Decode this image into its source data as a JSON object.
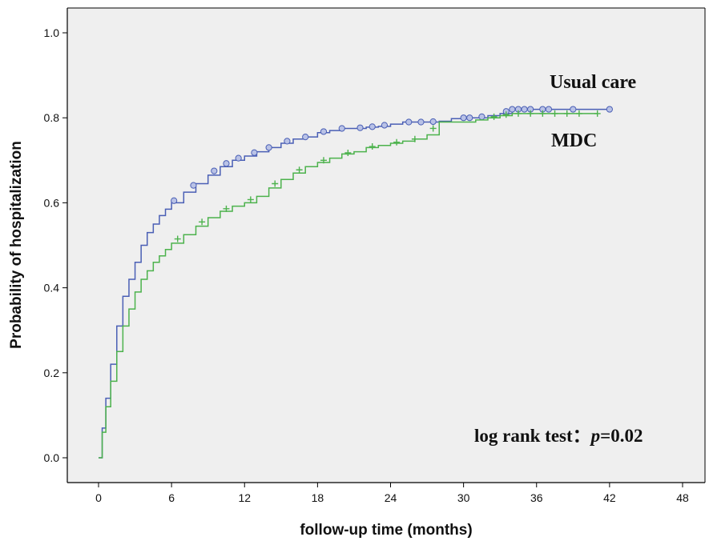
{
  "chart_data": {
    "type": "line",
    "subtype": "kaplan-meier-cumulative-incidence",
    "title": "",
    "xlabel": "follow-up time (months)",
    "ylabel": "Probability of hospitalization",
    "xlim": [
      0,
      48
    ],
    "ylim": [
      0,
      1.0
    ],
    "x_ticks": [
      0,
      6,
      12,
      18,
      24,
      30,
      36,
      42,
      48
    ],
    "x_tick_labels": [
      "0",
      "6",
      "12",
      "18",
      "24",
      "30",
      "36",
      "42",
      "48"
    ],
    "y_ticks": [
      0.0,
      0.2,
      0.4,
      0.6,
      0.8,
      1.0
    ],
    "y_tick_labels": [
      "0.0",
      "0.2",
      "0.4",
      "0.6",
      "0.8",
      "1.0"
    ],
    "grid": false,
    "plot_background": "#efefef",
    "series": [
      {
        "name": "Usual care",
        "color": "#4a5fb5",
        "marker": "circle",
        "x": [
          0,
          0.3,
          0.6,
          1,
          1.5,
          2,
          2.5,
          3,
          3.5,
          4,
          4.5,
          5,
          5.5,
          6,
          7,
          8,
          9,
          10,
          11,
          12,
          13,
          14,
          15,
          16,
          17,
          18,
          19,
          20,
          21,
          22,
          23,
          24,
          25,
          26,
          27,
          28,
          29,
          30,
          31,
          32,
          33,
          34,
          36,
          38,
          40,
          42
        ],
        "y": [
          0.0,
          0.07,
          0.14,
          0.22,
          0.31,
          0.38,
          0.42,
          0.46,
          0.5,
          0.53,
          0.55,
          0.57,
          0.585,
          0.6,
          0.625,
          0.645,
          0.665,
          0.685,
          0.7,
          0.71,
          0.72,
          0.73,
          0.74,
          0.75,
          0.755,
          0.765,
          0.77,
          0.775,
          0.775,
          0.778,
          0.78,
          0.785,
          0.79,
          0.79,
          0.79,
          0.792,
          0.798,
          0.8,
          0.8,
          0.805,
          0.81,
          0.82,
          0.82,
          0.82,
          0.82,
          0.82
        ],
        "censor_marks_x": [
          6.2,
          7.8,
          9.5,
          10.5,
          11.5,
          12.8,
          14,
          15.5,
          17,
          18.5,
          20,
          21.5,
          22.5,
          23.5,
          25.5,
          26.5,
          27.5,
          30,
          30.5,
          31.5,
          33.5,
          34,
          34.5,
          35,
          35.5,
          36.5,
          37,
          39,
          42
        ]
      },
      {
        "name": "MDC",
        "color": "#4cb24c",
        "marker": "plus",
        "x": [
          0,
          0.3,
          0.6,
          1,
          1.5,
          2,
          2.5,
          3,
          3.5,
          4,
          4.5,
          5,
          5.5,
          6,
          7,
          8,
          9,
          10,
          11,
          12,
          13,
          14,
          15,
          16,
          17,
          18,
          19,
          20,
          21,
          22,
          23,
          24,
          25,
          26,
          27,
          28,
          29,
          30,
          31,
          32,
          33,
          34,
          36,
          38,
          40,
          41
        ],
        "y": [
          0.0,
          0.06,
          0.12,
          0.18,
          0.25,
          0.31,
          0.35,
          0.39,
          0.42,
          0.44,
          0.46,
          0.475,
          0.49,
          0.505,
          0.525,
          0.545,
          0.565,
          0.58,
          0.592,
          0.6,
          0.615,
          0.635,
          0.655,
          0.67,
          0.685,
          0.695,
          0.705,
          0.715,
          0.72,
          0.73,
          0.735,
          0.74,
          0.745,
          0.75,
          0.76,
          0.79,
          0.79,
          0.79,
          0.795,
          0.8,
          0.805,
          0.81,
          0.81,
          0.81,
          0.81,
          0.81
        ],
        "censor_marks_x": [
          6.5,
          8.5,
          10.5,
          12.5,
          14.5,
          16.5,
          18.5,
          20.5,
          22.5,
          24.5,
          26,
          27.5,
          32.5,
          33.5,
          34.5,
          35.5,
          36.5,
          37.5,
          38.5,
          39.5,
          41
        ]
      }
    ],
    "legend_labels": [
      {
        "text": "Usual care",
        "series": "Usual care"
      },
      {
        "text": "MDC",
        "series": "MDC"
      }
    ],
    "annotation": {
      "prefix": "log rank test：",
      "p_symbol": "p",
      "value": "=0.02"
    }
  }
}
